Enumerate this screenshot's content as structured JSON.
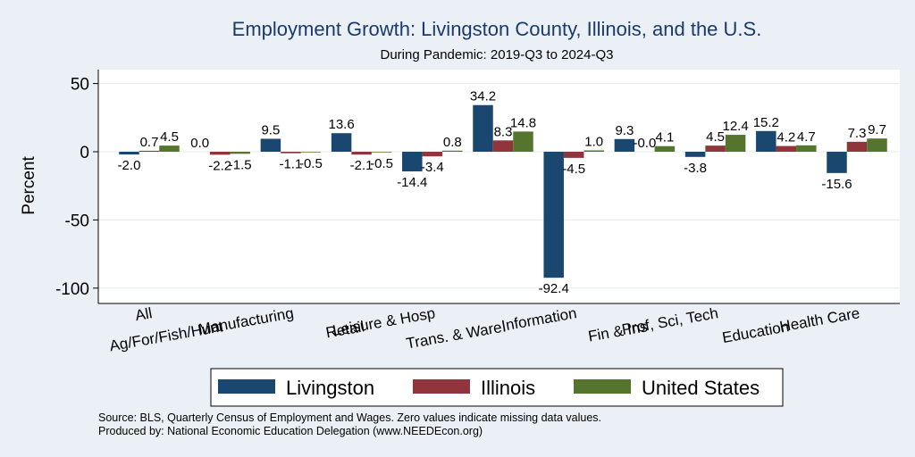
{
  "chart_data": {
    "type": "bar",
    "title": "Employment Growth: Livingston County, Illinois, and the U.S.",
    "subtitle": "During Pandemic: 2019-Q3 to 2024-Q3",
    "ylabel": "Percent",
    "xlabel": "",
    "ylim": [
      -100,
      50
    ],
    "yticks": [
      50,
      0,
      -50,
      -100
    ],
    "grid": true,
    "legend_position": "bottom",
    "categories": [
      "All",
      "Ag/For/Fish/Hunt",
      "Manufacturing",
      "Retail",
      "Leisure & Hosp",
      "Trans. & Ware.",
      "Information",
      "Fin & Ins",
      "Prof, Sci, Tech",
      "Education",
      "Health Care"
    ],
    "series": [
      {
        "name": "Livingston",
        "color": "#1a476f",
        "values": [
          -2.0,
          0.0,
          9.5,
          13.6,
          -14.4,
          34.2,
          -92.4,
          9.3,
          -3.8,
          15.2,
          -15.6
        ]
      },
      {
        "name": "Illinois",
        "color": "#90353b",
        "values": [
          0.7,
          -2.2,
          -1.1,
          -2.1,
          -3.4,
          8.3,
          -4.5,
          -0.0,
          4.5,
          4.2,
          7.3
        ]
      },
      {
        "name": "United States",
        "color": "#55752f",
        "values": [
          4.5,
          -1.5,
          -0.5,
          -0.5,
          0.8,
          14.8,
          1.0,
          4.1,
          12.4,
          4.7,
          9.7
        ]
      }
    ],
    "data_labels": [
      [
        "-2.0",
        "0.0",
        "9.5",
        "13.6",
        "-14.4",
        "34.2",
        "-92.4",
        "9.3",
        "-3.8",
        "15.2",
        "-15.6"
      ],
      [
        "0.7",
        "-2.2",
        "-1.1",
        "-2.1",
        "-3.4",
        "8.3",
        "-4.5",
        "-0.0",
        "4.5",
        "4.2",
        "7.3"
      ],
      [
        "4.5",
        "-1.5",
        "-0.5",
        "-0.5",
        "0.8",
        "14.8",
        "1.0",
        "4.1",
        "12.4",
        "4.7",
        "9.7"
      ]
    ]
  },
  "footnotes": {
    "source": "Source: BLS, Quarterly Census of Employment and Wages. Zero values indicate missing data values.",
    "produced_by": "Produced by: National Economic Education Delegation (www.NEEDEcon.org)"
  }
}
